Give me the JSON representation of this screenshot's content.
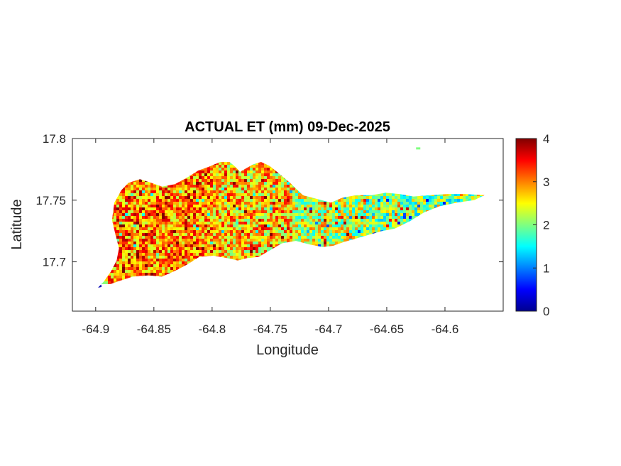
{
  "chart_data": {
    "type": "heatmap",
    "title": "ACTUAL ET (mm) 09-Dec-2025",
    "xlabel": "Longitude",
    "ylabel": "Latitude",
    "xlim": [
      -64.92,
      -64.55
    ],
    "ylim": [
      17.66,
      17.8
    ],
    "xticks": [
      -64.9,
      -64.85,
      -64.8,
      -64.75,
      -64.7,
      -64.65,
      -64.6
    ],
    "xtick_labels": [
      "-64.9",
      "-64.85",
      "-64.8",
      "-64.75",
      "-64.7",
      "-64.65",
      "-64.6"
    ],
    "yticks": [
      17.7,
      17.75,
      17.8
    ],
    "ytick_labels": [
      "17.7",
      "17.75",
      "17.8"
    ],
    "colorbar": {
      "range": [
        0,
        4
      ],
      "ticks": [
        0,
        1,
        2,
        3,
        4
      ],
      "tick_labels": [
        "0",
        "1",
        "2",
        "3",
        "4"
      ],
      "colormap": "jet"
    },
    "regions": [
      {
        "name": "",
        "lon_range": [
          -64.89,
          -64.8
        ],
        "mean_value": 3.0
      },
      {
        "name": "",
        "lon_range": [
          -64.8,
          -64.73
        ],
        "mean_value": 2.7
      },
      {
        "name": "",
        "lon_range": [
          -64.73,
          -64.67
        ],
        "mean_value": 2.3
      },
      {
        "name": "",
        "lon_range": [
          -64.67,
          -64.57
        ],
        "mean_value": 2.0
      }
    ],
    "island_outline": [
      [
        -64.898,
        17.679
      ],
      [
        -64.893,
        17.684
      ],
      [
        -64.887,
        17.692
      ],
      [
        -64.882,
        17.701
      ],
      [
        -64.88,
        17.711
      ],
      [
        -64.883,
        17.722
      ],
      [
        -64.886,
        17.734
      ],
      [
        -64.884,
        17.748
      ],
      [
        -64.878,
        17.758
      ],
      [
        -64.872,
        17.764
      ],
      [
        -64.862,
        17.767
      ],
      [
        -64.852,
        17.764
      ],
      [
        -64.843,
        17.761
      ],
      [
        -64.832,
        17.763
      ],
      [
        -64.822,
        17.768
      ],
      [
        -64.812,
        17.774
      ],
      [
        -64.803,
        17.777
      ],
      [
        -64.793,
        17.781
      ],
      [
        -64.785,
        17.781
      ],
      [
        -64.78,
        17.777
      ],
      [
        -64.776,
        17.773
      ],
      [
        -64.765,
        17.779
      ],
      [
        -64.758,
        17.781
      ],
      [
        -64.751,
        17.778
      ],
      [
        -64.743,
        17.772
      ],
      [
        -64.733,
        17.764
      ],
      [
        -64.722,
        17.754
      ],
      [
        -64.71,
        17.751
      ],
      [
        -64.698,
        17.748
      ],
      [
        -64.688,
        17.752
      ],
      [
        -64.676,
        17.754
      ],
      [
        -64.663,
        17.754
      ],
      [
        -64.651,
        17.756
      ],
      [
        -64.639,
        17.755
      ],
      [
        -64.627,
        17.753
      ],
      [
        -64.613,
        17.754
      ],
      [
        -64.598,
        17.755
      ],
      [
        -64.583,
        17.755
      ],
      [
        -64.566,
        17.754
      ],
      [
        -64.575,
        17.75
      ],
      [
        -64.59,
        17.748
      ],
      [
        -64.605,
        17.745
      ],
      [
        -64.618,
        17.74
      ],
      [
        -64.63,
        17.733
      ],
      [
        -64.643,
        17.727
      ],
      [
        -64.654,
        17.725
      ],
      [
        -64.665,
        17.722
      ],
      [
        -64.676,
        17.719
      ],
      [
        -64.687,
        17.716
      ],
      [
        -64.696,
        17.713
      ],
      [
        -64.705,
        17.712
      ],
      [
        -64.716,
        17.714
      ],
      [
        -64.728,
        17.717
      ],
      [
        -64.74,
        17.715
      ],
      [
        -64.751,
        17.709
      ],
      [
        -64.76,
        17.704
      ],
      [
        -64.77,
        17.703
      ],
      [
        -64.778,
        17.701
      ],
      [
        -64.787,
        17.703
      ],
      [
        -64.799,
        17.705
      ],
      [
        -64.811,
        17.704
      ],
      [
        -64.821,
        17.698
      ],
      [
        -64.831,
        17.693
      ],
      [
        -64.843,
        17.688
      ],
      [
        -64.855,
        17.689
      ],
      [
        -64.868,
        17.688
      ],
      [
        -64.881,
        17.684
      ],
      [
        -64.893,
        17.68
      ]
    ]
  }
}
